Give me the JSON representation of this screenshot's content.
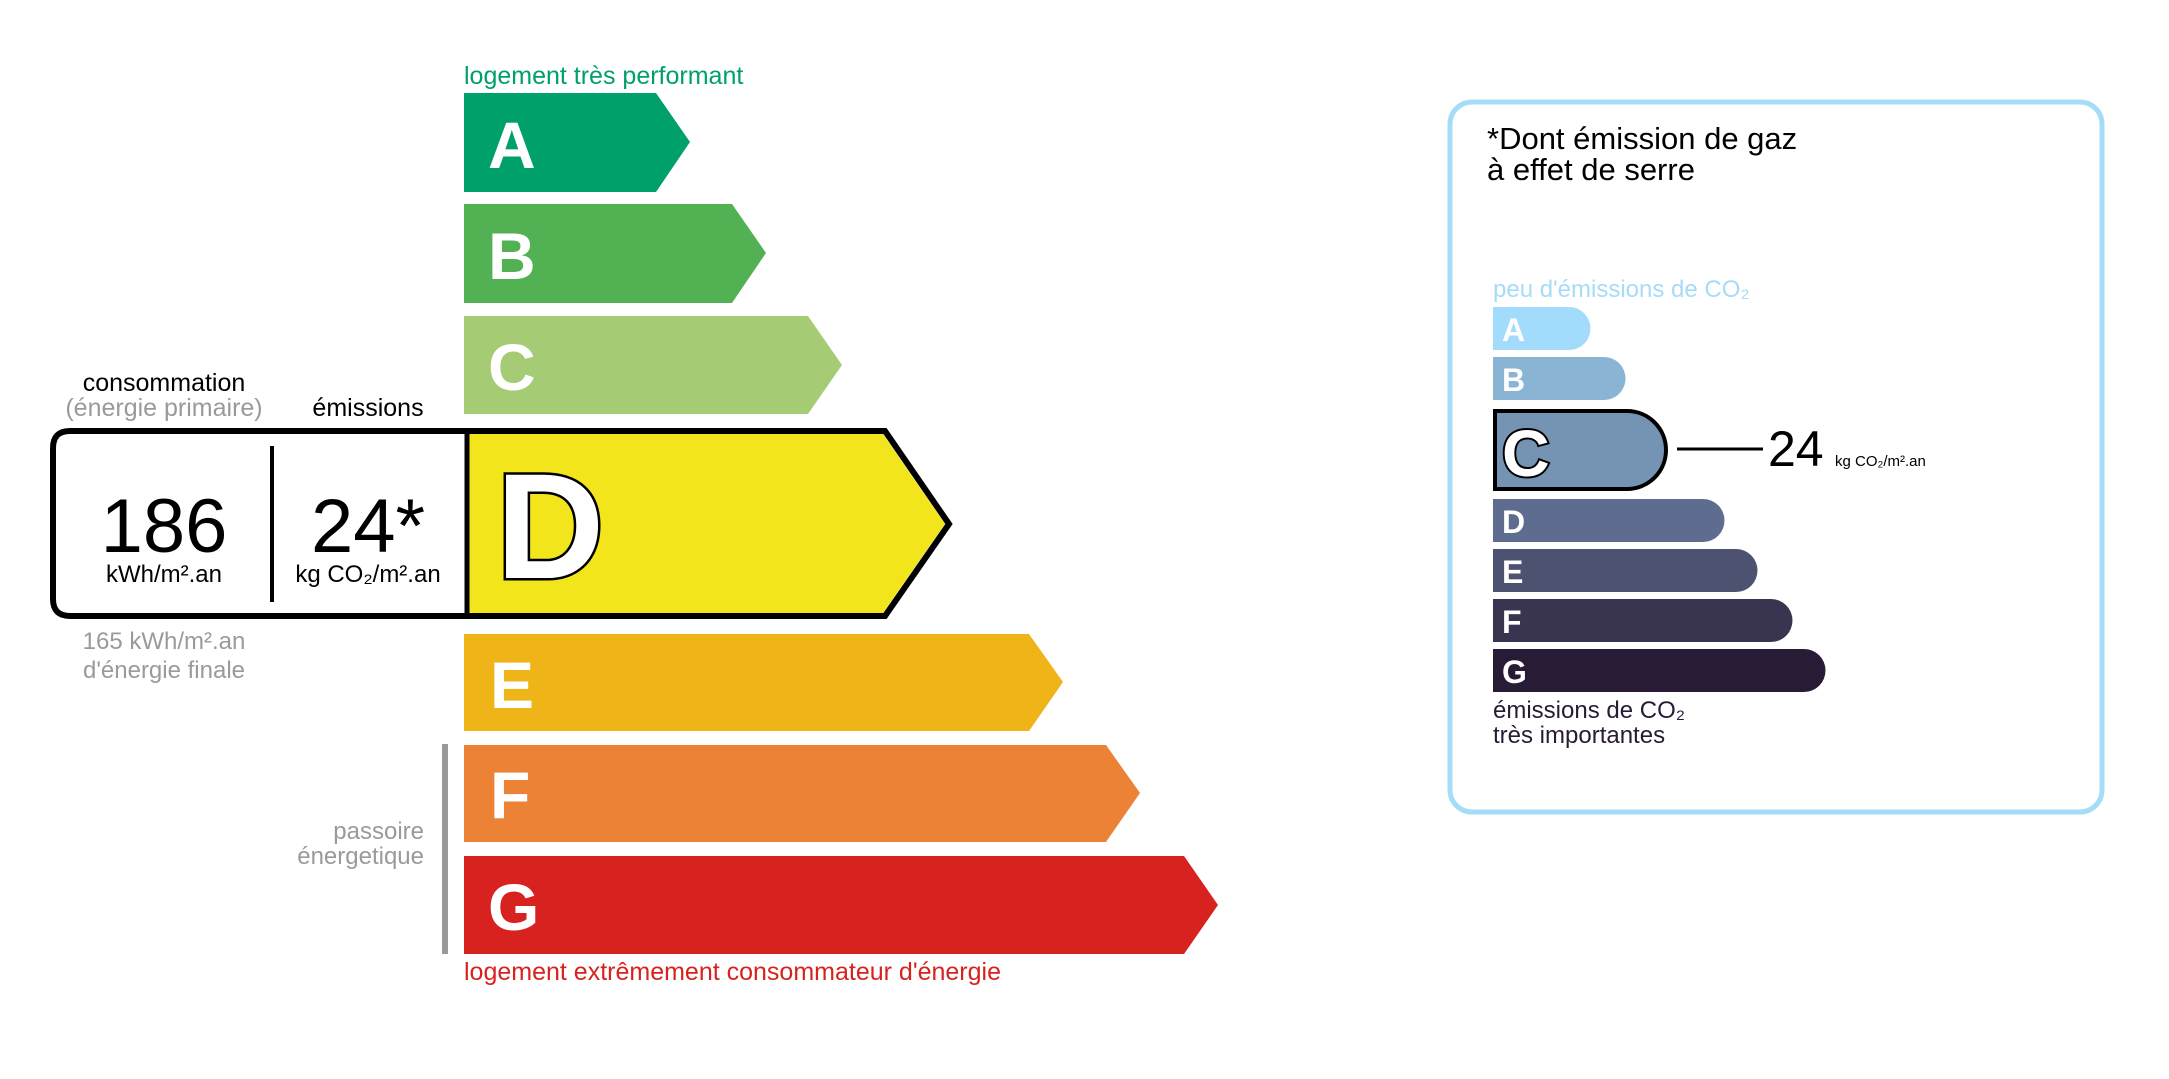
{
  "energy": {
    "top_label": "logement très performant",
    "bottom_label": "logement extrêmement consommateur d'énergie",
    "classes": [
      {
        "letter": "A",
        "color": "#00a06a"
      },
      {
        "letter": "B",
        "color": "#52b153"
      },
      {
        "letter": "C",
        "color": "#a5cc74"
      },
      {
        "letter": "D",
        "color": "#f2e51c"
      },
      {
        "letter": "E",
        "color": "#efb418"
      },
      {
        "letter": "F",
        "color": "#eb8235"
      },
      {
        "letter": "G",
        "color": "#d7221f"
      }
    ],
    "current_class": "D",
    "consumption_label": "consommation",
    "consumption_sublabel": "(énergie primaire)",
    "emissions_label": "émissions",
    "consumption_value": "186",
    "consumption_unit": "kWh/m².an",
    "emissions_value": "24*",
    "emissions_unit": "kg CO₂/m².an",
    "final_energy_value": "165 kWh/m².an",
    "final_energy_label": "d'énergie finale",
    "passoire_line1": "passoire",
    "passoire_line2": "énergetique"
  },
  "ges": {
    "title_line1": "*Dont émission de gaz",
    "title_line2": "à effet de serre",
    "top_label": "peu d'émissions de CO₂",
    "bottom_line1": "émissions de CO₂",
    "bottom_line2": "très importantes",
    "classes": [
      {
        "letter": "A",
        "color": "#a3dbfc"
      },
      {
        "letter": "B",
        "color": "#8ab4d3"
      },
      {
        "letter": "C",
        "color": "#7594b3"
      },
      {
        "letter": "D",
        "color": "#5e6d8f"
      },
      {
        "letter": "E",
        "color": "#4d5271"
      },
      {
        "letter": "F",
        "color": "#393550"
      },
      {
        "letter": "G",
        "color": "#281b35"
      }
    ],
    "current_class": "C",
    "value": "24",
    "unit": "kg CO₂/m².an",
    "border_color": "#a6dcf7"
  }
}
